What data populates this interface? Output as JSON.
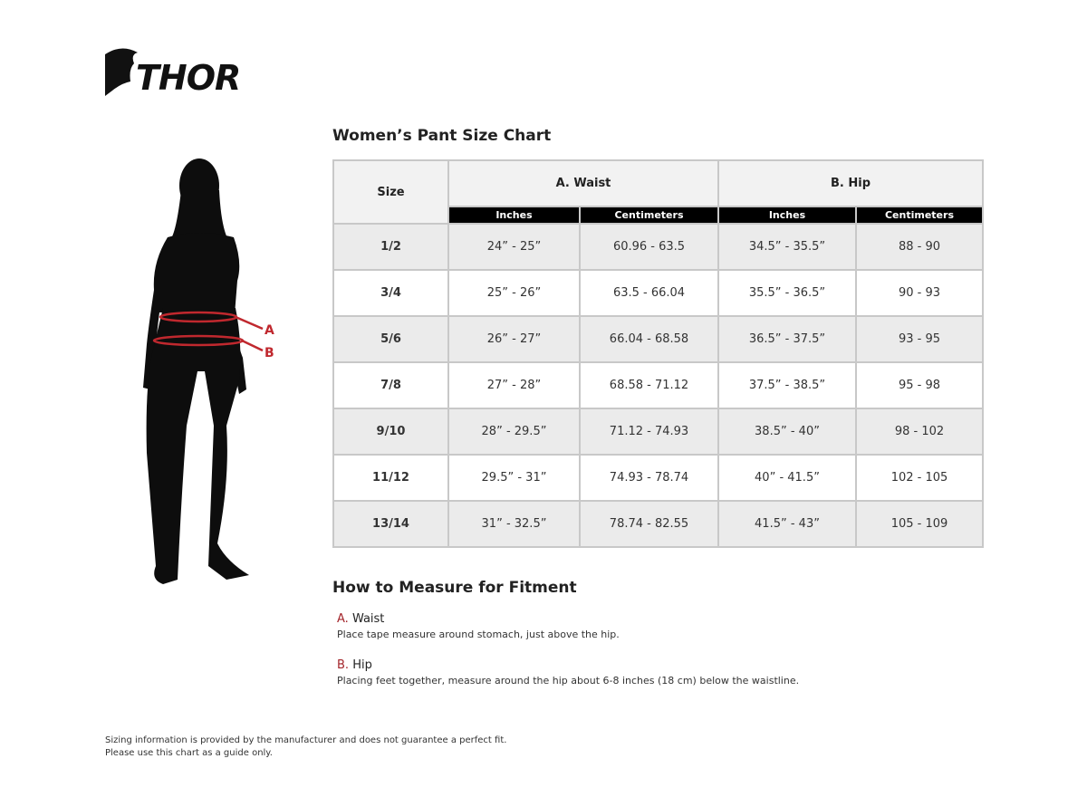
{
  "brand": {
    "logo_text": "THOR"
  },
  "chart_title": "Women’s Pant Size Chart",
  "figure_labels": {
    "a": "A",
    "b": "B"
  },
  "table": {
    "size_header": "Size",
    "groups": [
      "A. Waist",
      "B. Hip"
    ],
    "subheaders": [
      "Inches",
      "Centimeters",
      "Inches",
      "Centimeters"
    ],
    "rows": [
      [
        "1/2",
        "24” - 25”",
        "60.96 - 63.5",
        "34.5” - 35.5”",
        "88 - 90"
      ],
      [
        "3/4",
        "25” - 26”",
        "63.5 - 66.04",
        "35.5” - 36.5”",
        "90 - 93"
      ],
      [
        "5/6",
        "26” - 27”",
        "66.04 - 68.58",
        "36.5” - 37.5”",
        "93 - 95"
      ],
      [
        "7/8",
        "27” - 28”",
        "68.58 - 71.12",
        "37.5” - 38.5”",
        "95 - 98"
      ],
      [
        "9/10",
        "28” - 29.5”",
        "71.12 - 74.93",
        "38.5” - 40”",
        "98 - 102"
      ],
      [
        "11/12",
        "29.5” - 31”",
        "74.93 - 78.74",
        "40” - 41.5”",
        "102 - 105"
      ],
      [
        "13/14",
        "31” - 32.5”",
        "78.74 - 82.55",
        "41.5” - 43”",
        "105 - 109"
      ]
    ]
  },
  "how_to": {
    "title": "How to Measure for Fitment",
    "items": [
      {
        "letter": "A.",
        "label": "Waist",
        "text": "Place tape measure around stomach, just above the hip."
      },
      {
        "letter": "B.",
        "label": "Hip",
        "text": "Placing feet together, measure around the hip about 6-8 inches (18 cm) below the waistline."
      }
    ]
  },
  "disclaimer": [
    "Sizing information is provided by the manufacturer and does not guarantee a perfect fit.",
    "Please use this chart as a guide only."
  ],
  "colors": {
    "accent": "#a3242a",
    "header_bg": "#000000",
    "shade": "#ebebeb"
  }
}
